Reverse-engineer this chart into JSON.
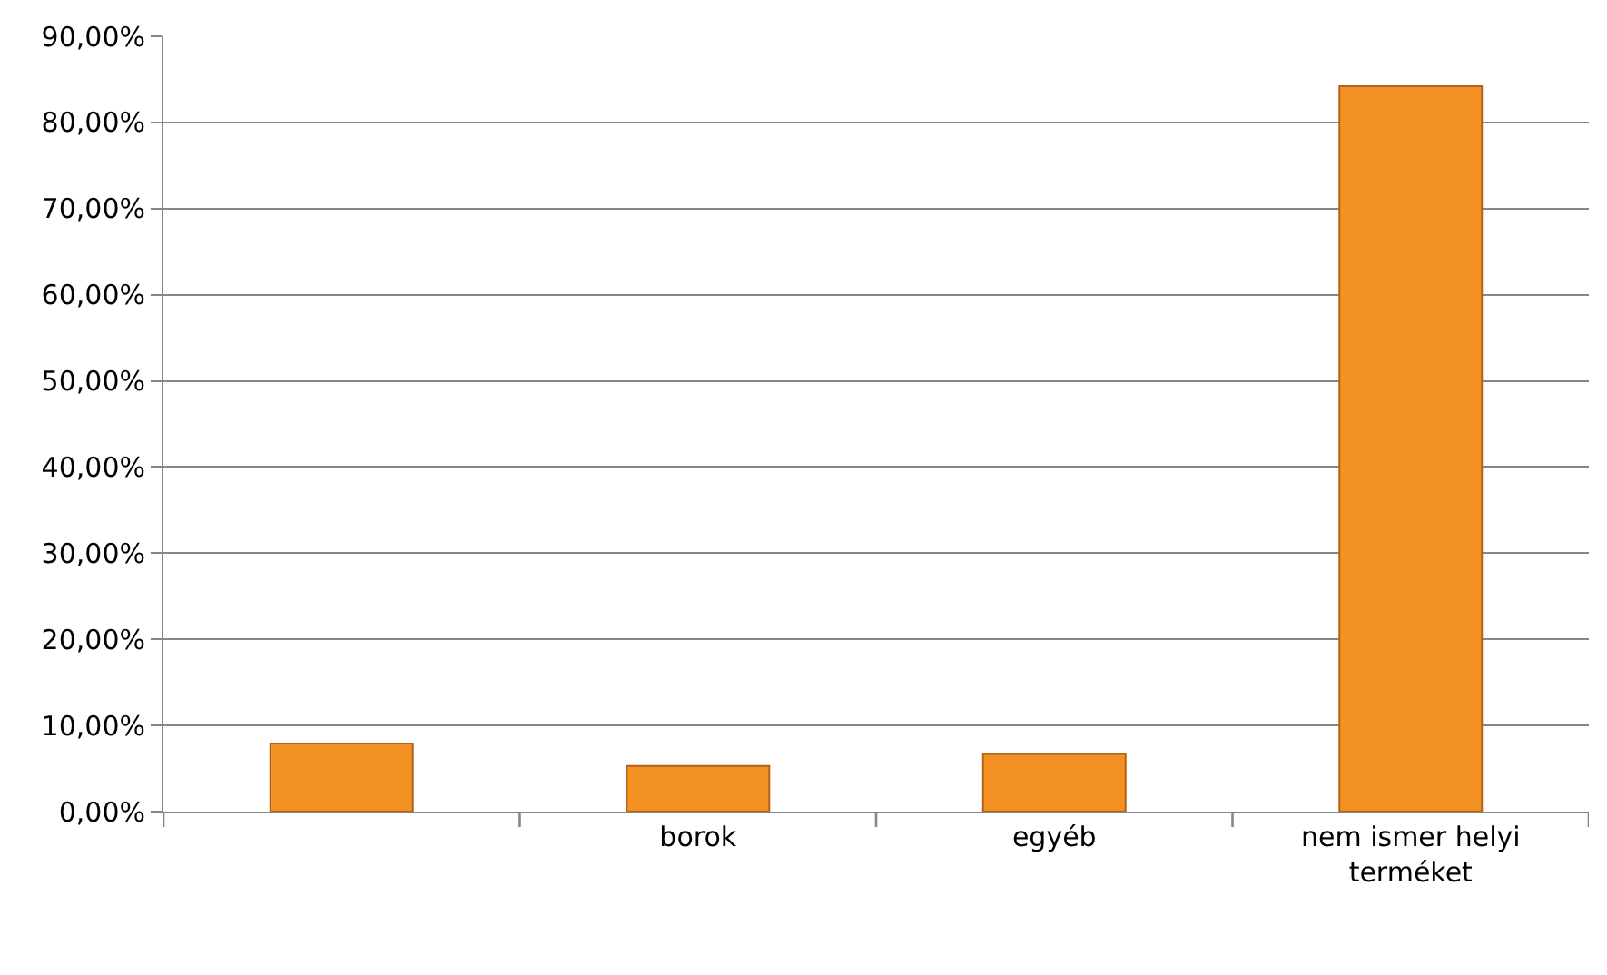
{
  "chart_data": {
    "type": "bar",
    "categories": [
      null,
      "borok",
      "egyéb",
      "nem ismer helyi terméket"
    ],
    "values": [
      7.9,
      5.3,
      6.7,
      84.2
    ],
    "color": "#f39125",
    "ylim": [
      0,
      90
    ],
    "yticks": [
      {
        "value": 0,
        "label": "0,00%"
      },
      {
        "value": 10,
        "label": "10,00%"
      },
      {
        "value": 20,
        "label": "20,00%"
      },
      {
        "value": 30,
        "label": "30,00%"
      },
      {
        "value": 40,
        "label": "40,00%"
      },
      {
        "value": 50,
        "label": "50,00%"
      },
      {
        "value": 60,
        "label": "60,00%"
      },
      {
        "value": 70,
        "label": "70,00%"
      },
      {
        "value": 80,
        "label": "80,00%"
      },
      {
        "value": 90,
        "label": "90,00%"
      }
    ],
    "grid": "y"
  }
}
